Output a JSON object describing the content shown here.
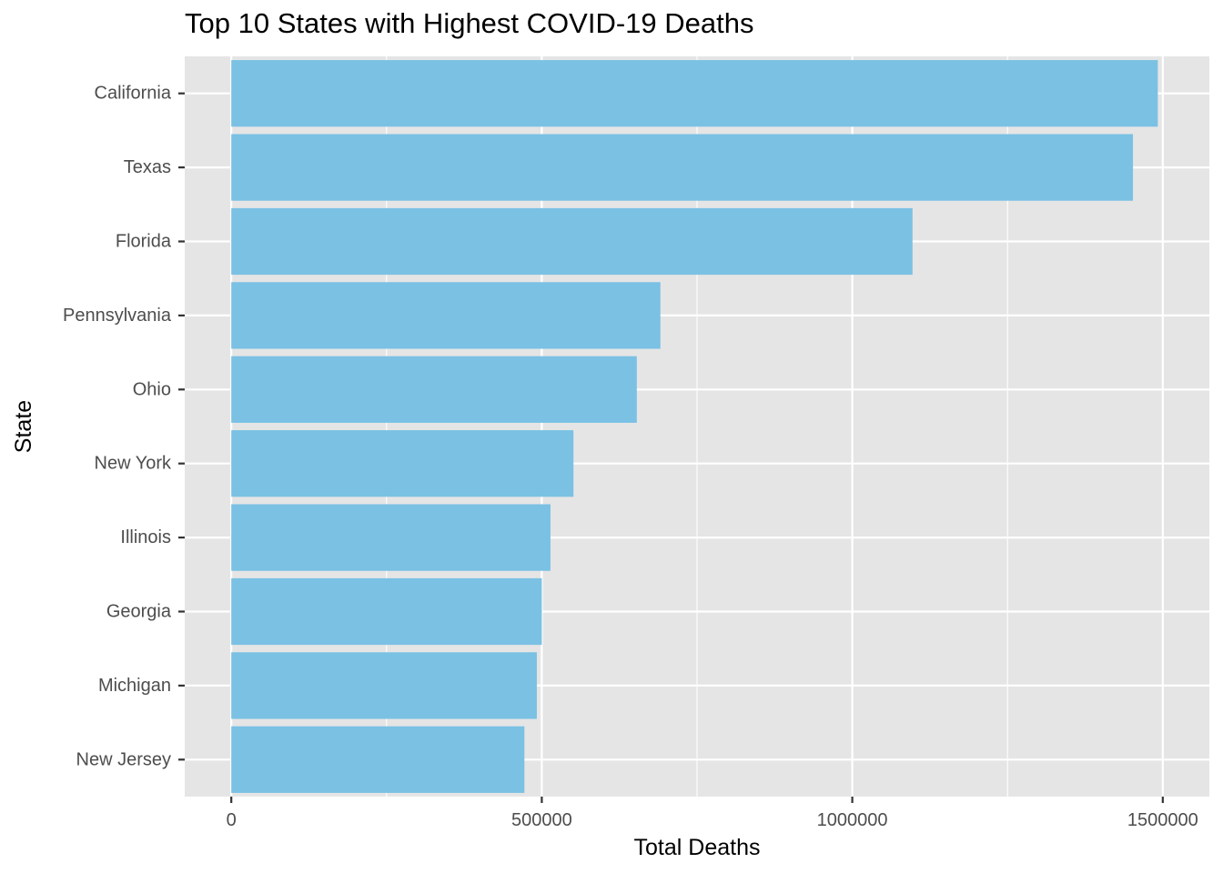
{
  "chart_data": {
    "type": "bar",
    "orientation": "horizontal",
    "title": "Top 10 States with Highest COVID-19 Deaths",
    "xlabel": "Total Deaths",
    "ylabel": "State",
    "categories": [
      "California",
      "Texas",
      "Florida",
      "Pennsylvania",
      "Ohio",
      "New York",
      "Illinois",
      "Georgia",
      "Michigan",
      "New Jersey"
    ],
    "values": [
      1492000,
      1452000,
      1097000,
      691000,
      653000,
      551000,
      514000,
      500000,
      492000,
      472000
    ],
    "xlim": [
      -75000,
      1575000
    ],
    "xticks": [
      0,
      500000,
      1000000,
      1500000
    ],
    "xtick_labels": [
      "0",
      "500000",
      "1000000",
      "1500000"
    ],
    "grid": true,
    "colors": {
      "bar": "#7ac1e4",
      "panel": "#e5e5e5",
      "grid": "#ffffff",
      "tick": "#333333"
    }
  }
}
